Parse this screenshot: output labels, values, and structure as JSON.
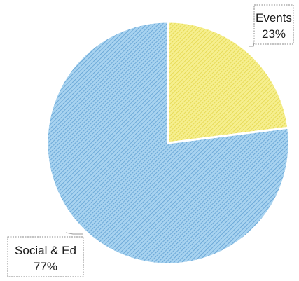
{
  "chart_data": {
    "type": "pie",
    "title": "",
    "slices": [
      {
        "label": "Events",
        "value": 23,
        "display": "23%",
        "color": "#f2eb7a"
      },
      {
        "label": "Social & Ed",
        "value": 77,
        "display": "77%",
        "color": "#8dc3ea"
      }
    ],
    "start_angle_deg": 0,
    "direction": "clockwise",
    "pattern": "diagonal-hatch",
    "legend": "none",
    "data_labels": "outside-boxed"
  }
}
